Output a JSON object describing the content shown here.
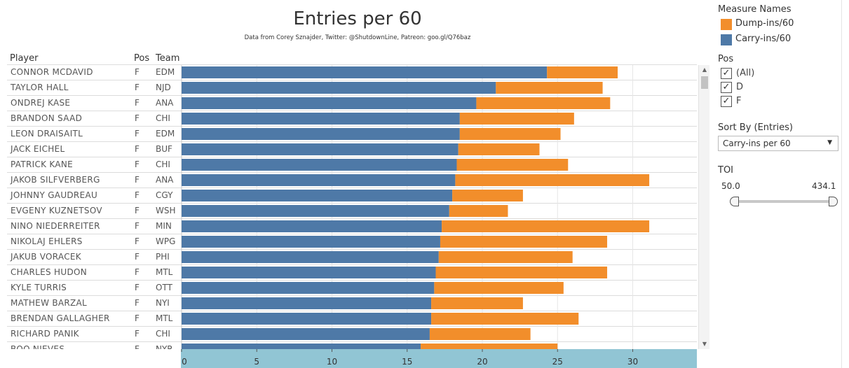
{
  "header": {
    "title": "Entries per 60",
    "subtitle": "Data from Corey Sznajder, Twitter: @ShutdownLine, Patreon: goo.gl/Q76baz"
  },
  "columns": {
    "player": "Player",
    "pos": "Pos",
    "team": "Team"
  },
  "colors": {
    "carry": "#4e79a7",
    "dump": "#f28e2b",
    "axis_band": "#91c5d4"
  },
  "chart_data": {
    "type": "bar",
    "orientation": "horizontal",
    "stacked": true,
    "title": "Entries per 60",
    "xlim": [
      0,
      34
    ],
    "x_ticks": [
      0,
      5,
      10,
      15,
      20,
      25,
      30
    ],
    "grid": true,
    "categories": [
      "CONNOR MCDAVID",
      "TAYLOR HALL",
      "ONDREJ KASE",
      "BRANDON SAAD",
      "LEON DRAISAITL",
      "JACK EICHEL",
      "PATRICK KANE",
      "JAKOB SILFVERBERG",
      "JOHNNY GAUDREAU",
      "EVGENY KUZNETSOV",
      "NINO NIEDERREITER",
      "NIKOLAJ EHLERS",
      "JAKUB VORACEK",
      "CHARLES HUDON",
      "KYLE TURRIS",
      "MATHEW BARZAL",
      "BRENDAN GALLAGHER",
      "RICHARD PANIK",
      "BOO NIEVES"
    ],
    "pos": [
      "F",
      "F",
      "F",
      "F",
      "F",
      "F",
      "F",
      "F",
      "F",
      "F",
      "F",
      "F",
      "F",
      "F",
      "F",
      "F",
      "F",
      "F",
      "F"
    ],
    "team": [
      "EDM",
      "NJD",
      "ANA",
      "CHI",
      "EDM",
      "BUF",
      "CHI",
      "ANA",
      "CGY",
      "WSH",
      "MIN",
      "WPG",
      "PHI",
      "MTL",
      "OTT",
      "NYI",
      "MTL",
      "CHI",
      "NYR"
    ],
    "series": [
      {
        "name": "Carry-ins/60",
        "values": [
          24.3,
          20.9,
          19.6,
          18.5,
          18.5,
          18.4,
          18.3,
          18.2,
          18.0,
          17.8,
          17.3,
          17.2,
          17.1,
          16.9,
          16.8,
          16.6,
          16.6,
          16.5,
          15.9
        ]
      },
      {
        "name": "Dump-ins/60",
        "values": [
          4.7,
          7.1,
          8.9,
          7.6,
          6.7,
          5.4,
          7.4,
          12.9,
          4.7,
          3.9,
          13.8,
          11.1,
          8.9,
          11.4,
          8.6,
          6.1,
          9.8,
          6.7,
          9.1
        ]
      }
    ]
  },
  "legend": {
    "title": "Measure Names",
    "items": [
      {
        "label": "Dump-ins/60",
        "color": "#f28e2b"
      },
      {
        "label": "Carry-ins/60",
        "color": "#4e79a7"
      }
    ]
  },
  "pos_filter": {
    "title": "Pos",
    "options": [
      {
        "label": "(All)",
        "checked": true
      },
      {
        "label": "D",
        "checked": true
      },
      {
        "label": "F",
        "checked": true
      }
    ]
  },
  "sort": {
    "title": "Sort By (Entries)",
    "value": "Carry-ins per 60"
  },
  "toi": {
    "title": "TOI",
    "min": "50.0",
    "max": "434.1"
  }
}
